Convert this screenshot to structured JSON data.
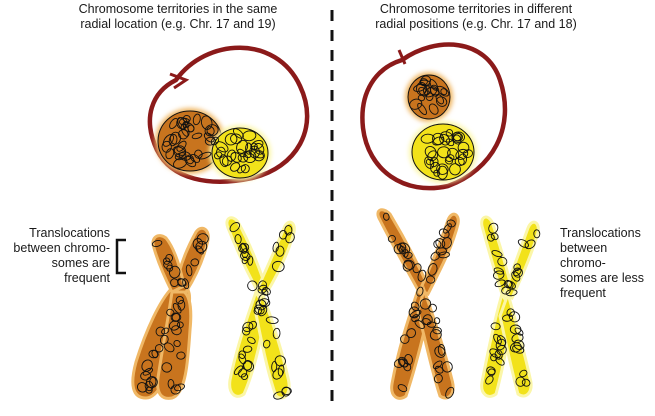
{
  "left_panel": {
    "heading_lines": [
      "Chromosome territories in the same",
      "radial location (e.g. Chr. 17 and 19)"
    ],
    "note_lines": [
      "Translocations",
      "between chromo-",
      "somes are",
      "frequent"
    ]
  },
  "right_panel": {
    "heading_lines": [
      "Chromosome territories in different",
      "radial positions (e.g. Chr. 17 and 18)"
    ],
    "note_lines": [
      "Translocations",
      "between chromo-",
      "somes are less",
      "frequent"
    ]
  },
  "colors": {
    "nucleus": "#8b1a1a",
    "orange_chromosome": "#c8741e",
    "yellow_chromosome": "#f2e21a",
    "glow_orange": "#f0b866",
    "glow_yellow": "#fbf6a8",
    "loops": "#111111",
    "divider": "#111111"
  }
}
